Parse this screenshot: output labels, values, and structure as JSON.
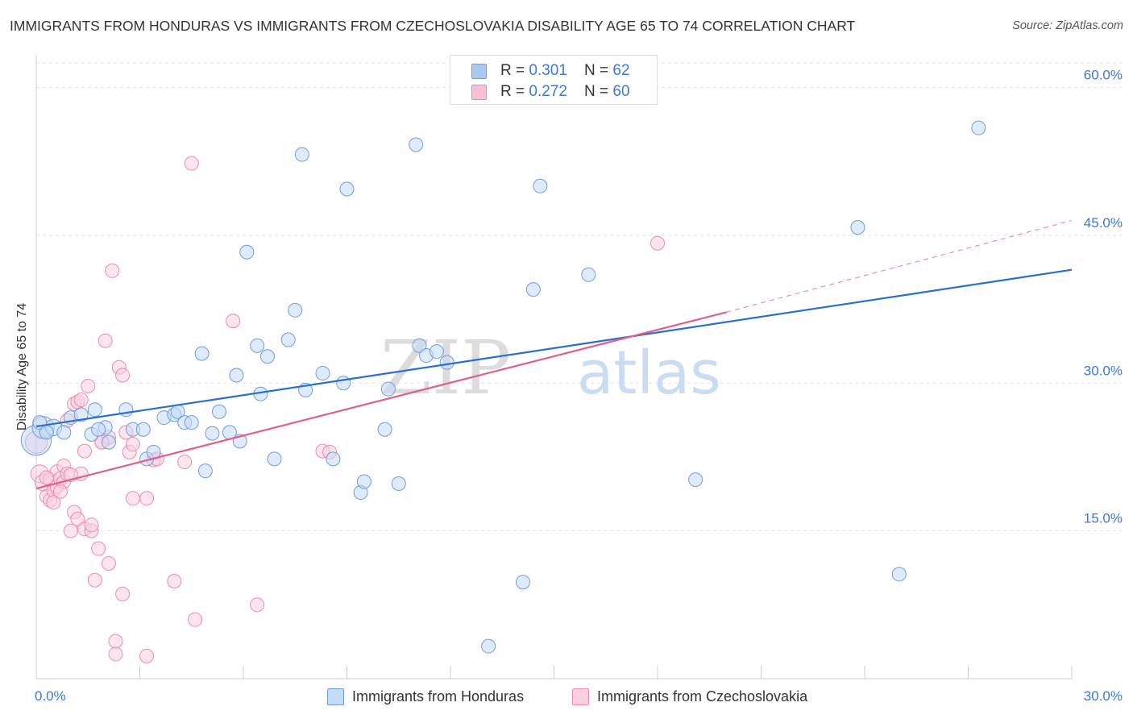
{
  "title": "IMMIGRANTS FROM HONDURAS VS IMMIGRANTS FROM CZECHOSLOVAKIA DISABILITY AGE 65 TO 74 CORRELATION CHART",
  "source": "Source: ZipAtlas.com",
  "watermark": {
    "zip": "ZIP",
    "atlas": "atlas"
  },
  "legend": {
    "rows": [
      {
        "r_label": "R = ",
        "r_value": "0.301",
        "n_label": "N = ",
        "n_value": "62",
        "color": "#a9c8f2",
        "border": "#6f9be0"
      },
      {
        "r_label": "R = ",
        "r_value": "0.272",
        "n_label": "N = ",
        "n_value": "60",
        "color": "#f9c0d3",
        "border": "#ec8cad"
      }
    ]
  },
  "bottom_legend": {
    "honduras": "Immigrants from Honduras",
    "czechoslovakia": "Immigrants from Czechoslovakia"
  },
  "chart_data": {
    "type": "scatter",
    "title": "IMMIGRANTS FROM HONDURAS VS IMMIGRANTS FROM CZECHOSLOVAKIA DISABILITY AGE 65 TO 74 CORRELATION CHART",
    "xlabel": "",
    "ylabel": "Disability Age 65 to 74",
    "xlim": [
      0,
      30
    ],
    "ylim": [
      0,
      62.5
    ],
    "x_tick_labels": [
      "0.0%",
      "30.0%"
    ],
    "y_ticks": [
      15,
      30,
      45,
      60
    ],
    "y_tick_labels": [
      "15.0%",
      "30.0%",
      "45.0%",
      "60.0%"
    ],
    "grid": true,
    "series": [
      {
        "name": "Immigrants from Honduras",
        "color": "#6f9be0",
        "fill": "#c5daf5",
        "line_color": "#2a6fd0",
        "trend": {
          "x0": 0,
          "y0": 25.6,
          "x1": 30,
          "y1": 41.5
        },
        "points": [
          [
            0.0,
            24.2,
            2.2
          ],
          [
            0.2,
            25.5,
            1.6
          ],
          [
            0.5,
            25.5,
            1.2
          ],
          [
            0.8,
            25.0,
            1.0
          ],
          [
            1.0,
            26.5,
            1.0
          ],
          [
            1.3,
            26.8,
            1.0
          ],
          [
            1.7,
            27.3,
            1.0
          ],
          [
            1.6,
            24.8,
            1.0
          ],
          [
            2.0,
            25.5,
            1.0
          ],
          [
            2.1,
            24.0,
            1.0
          ],
          [
            2.6,
            27.3,
            1.0
          ],
          [
            2.8,
            25.3,
            1.0
          ],
          [
            3.1,
            25.3,
            1.0
          ],
          [
            3.2,
            22.3,
            1.0
          ],
          [
            3.4,
            23.0,
            1.0
          ],
          [
            3.7,
            26.5,
            1.0
          ],
          [
            4.0,
            26.8,
            1.0
          ],
          [
            4.1,
            27.1,
            1.0
          ],
          [
            4.3,
            26.0,
            1.0
          ],
          [
            4.5,
            26.0,
            1.0
          ],
          [
            4.8,
            33.0,
            1.0
          ],
          [
            4.9,
            21.1,
            1.0
          ],
          [
            5.1,
            24.9,
            1.0
          ],
          [
            5.3,
            27.1,
            1.0
          ],
          [
            5.6,
            25.0,
            1.0
          ],
          [
            5.8,
            30.8,
            1.0
          ],
          [
            5.9,
            24.1,
            1.0
          ],
          [
            6.1,
            43.3,
            1.0
          ],
          [
            6.4,
            33.8,
            1.0
          ],
          [
            6.5,
            28.9,
            1.0
          ],
          [
            6.7,
            32.7,
            1.0
          ],
          [
            6.9,
            22.3,
            1.0
          ],
          [
            7.3,
            34.4,
            1.0
          ],
          [
            7.5,
            37.4,
            1.0
          ],
          [
            7.7,
            53.2,
            1.0
          ],
          [
            7.8,
            29.3,
            1.0
          ],
          [
            8.3,
            31.0,
            1.0
          ],
          [
            8.6,
            22.3,
            1.0
          ],
          [
            8.9,
            30.0,
            1.0
          ],
          [
            9.0,
            49.7,
            1.0
          ],
          [
            9.4,
            18.9,
            1.0
          ],
          [
            9.5,
            20.0,
            1.0
          ],
          [
            10.2,
            29.4,
            1.0
          ],
          [
            10.1,
            25.3,
            1.0
          ],
          [
            10.5,
            19.8,
            1.0
          ],
          [
            11.1,
            33.8,
            1.0
          ],
          [
            11.3,
            32.8,
            1.0
          ],
          [
            11.6,
            33.2,
            1.0
          ],
          [
            11.9,
            32.1,
            1.0
          ],
          [
            11.0,
            54.2,
            1.0
          ],
          [
            13.1,
            3.3,
            1.0
          ],
          [
            14.1,
            9.8,
            1.0
          ],
          [
            14.4,
            39.5,
            1.0
          ],
          [
            14.6,
            50.0,
            1.0
          ],
          [
            16.0,
            41.0,
            1.0
          ],
          [
            19.1,
            20.2,
            1.0
          ],
          [
            23.8,
            45.8,
            1.0
          ],
          [
            25.0,
            10.6,
            1.0
          ],
          [
            27.3,
            55.9,
            1.0
          ],
          [
            0.1,
            26.0,
            1.0
          ],
          [
            0.3,
            25.0,
            1.0
          ],
          [
            1.8,
            25.3,
            1.0
          ]
        ]
      },
      {
        "name": "Immigrants from Czechoslovakia",
        "color": "#ec8cad",
        "fill": "#fad0de",
        "line_color": "#e0608c",
        "trend": {
          "x0": 0,
          "y0": 19.3,
          "x1": 20.0,
          "y1": 37.2
        },
        "trend_dashed": {
          "x0": 20.0,
          "y0": 37.2,
          "x1": 30,
          "y1": 46.5
        },
        "points": [
          [
            0.0,
            24.0,
            1.6
          ],
          [
            0.1,
            20.8,
            1.3
          ],
          [
            0.2,
            19.9,
            1.2
          ],
          [
            0.3,
            18.5,
            1.0
          ],
          [
            0.4,
            20.2,
            1.0
          ],
          [
            0.4,
            18.1,
            1.0
          ],
          [
            0.5,
            19.1,
            1.0
          ],
          [
            0.6,
            21.0,
            1.0
          ],
          [
            0.6,
            19.5,
            1.0
          ],
          [
            0.7,
            20.3,
            1.0
          ],
          [
            0.8,
            21.6,
            1.0
          ],
          [
            0.8,
            20.0,
            1.0
          ],
          [
            0.9,
            26.2,
            1.0
          ],
          [
            0.9,
            20.8,
            1.0
          ],
          [
            1.0,
            15.0,
            1.0
          ],
          [
            1.1,
            16.9,
            1.0
          ],
          [
            1.1,
            27.9,
            1.0
          ],
          [
            1.2,
            28.1,
            1.0
          ],
          [
            1.2,
            16.2,
            1.0
          ],
          [
            1.3,
            28.3,
            1.0
          ],
          [
            1.3,
            20.8,
            1.0
          ],
          [
            1.4,
            23.1,
            1.0
          ],
          [
            1.4,
            15.2,
            1.0
          ],
          [
            1.5,
            29.7,
            1.0
          ],
          [
            1.6,
            15.0,
            1.0
          ],
          [
            1.6,
            15.6,
            1.0
          ],
          [
            1.7,
            10.0,
            1.0
          ],
          [
            1.8,
            13.2,
            1.0
          ],
          [
            1.9,
            24.0,
            1.0
          ],
          [
            2.0,
            34.3,
            1.0
          ],
          [
            2.1,
            24.5,
            1.0
          ],
          [
            2.1,
            11.7,
            1.0
          ],
          [
            2.2,
            41.4,
            1.0
          ],
          [
            2.3,
            2.5,
            1.0
          ],
          [
            2.3,
            3.8,
            1.0
          ],
          [
            2.4,
            31.6,
            1.0
          ],
          [
            2.5,
            30.8,
            1.0
          ],
          [
            2.5,
            8.6,
            1.0
          ],
          [
            2.6,
            25.0,
            1.0
          ],
          [
            2.7,
            23.0,
            1.0
          ],
          [
            2.8,
            18.3,
            1.0
          ],
          [
            2.8,
            23.8,
            1.0
          ],
          [
            3.2,
            2.3,
            1.0
          ],
          [
            3.2,
            18.3,
            1.0
          ],
          [
            3.4,
            22.2,
            1.0
          ],
          [
            3.5,
            22.3,
            1.0
          ],
          [
            4.0,
            9.9,
            1.0
          ],
          [
            4.3,
            22.0,
            1.0
          ],
          [
            4.5,
            52.3,
            1.0
          ],
          [
            4.6,
            6.0,
            1.0
          ],
          [
            5.7,
            36.3,
            1.0
          ],
          [
            6.4,
            7.5,
            1.0
          ],
          [
            8.3,
            23.1,
            1.0
          ],
          [
            8.5,
            23.0,
            1.0
          ],
          [
            18.0,
            44.2,
            1.0
          ],
          [
            0.5,
            17.9,
            1.0
          ],
          [
            0.7,
            19.0,
            1.0
          ],
          [
            0.3,
            20.4,
            1.0
          ],
          [
            1.0,
            20.7,
            1.0
          ],
          [
            1.9,
            24.0,
            1.0
          ]
        ]
      }
    ]
  }
}
